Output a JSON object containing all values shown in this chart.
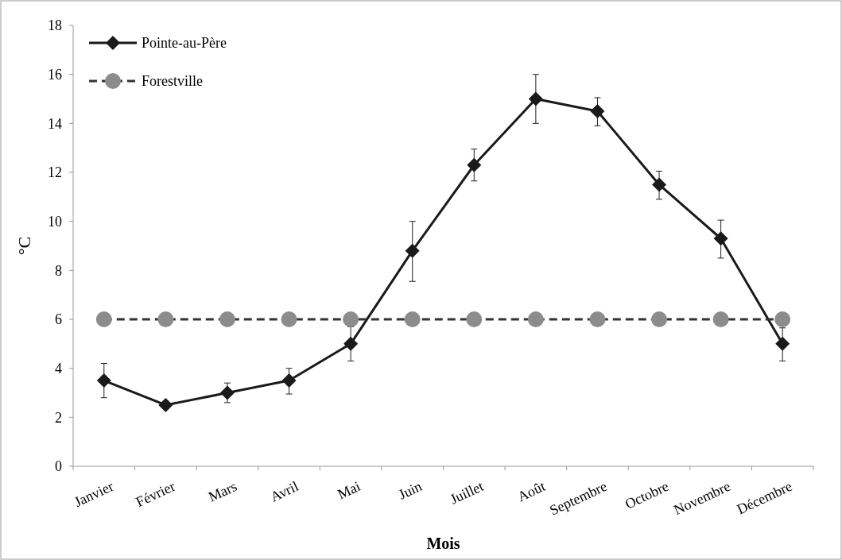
{
  "chart_data": {
    "type": "line",
    "xlabel": "Mois",
    "ylabel": "°C",
    "categories": [
      "Janvier",
      "Février",
      "Mars",
      "Avril",
      "Mai",
      "Juin",
      "Juillet",
      "Août",
      "Septembre",
      "Octobre",
      "Novembre",
      "Décembre"
    ],
    "series": [
      {
        "name": "Pointe-au-Père",
        "color": "#1a1a1a",
        "marker": "diamond",
        "line_style": "solid",
        "values": [
          3.5,
          2.5,
          3.0,
          3.5,
          5.0,
          8.8,
          12.3,
          15.0,
          14.5,
          11.5,
          9.3,
          5.0
        ],
        "errors": [
          [
            2.8,
            4.2
          ],
          [
            2.35,
            2.65
          ],
          [
            2.6,
            3.4
          ],
          [
            2.95,
            4.0
          ],
          [
            4.3,
            5.7
          ],
          [
            7.55,
            10.0
          ],
          [
            11.65,
            12.95
          ],
          [
            14.0,
            16.0
          ],
          [
            13.9,
            15.05
          ],
          [
            10.9,
            12.05
          ],
          [
            8.5,
            10.05
          ],
          [
            4.3,
            5.65
          ]
        ]
      },
      {
        "name": "Forestville",
        "color": "#8c8c8c",
        "marker": "circle",
        "line_style": "dashed",
        "values": [
          6,
          6,
          6,
          6,
          6,
          6,
          6,
          6,
          6,
          6,
          6,
          6
        ]
      }
    ],
    "ylim": [
      0,
      18
    ],
    "yticks": [
      0,
      2,
      4,
      6,
      8,
      10,
      12,
      14,
      16,
      18
    ],
    "grid": false,
    "legend": "top left"
  }
}
